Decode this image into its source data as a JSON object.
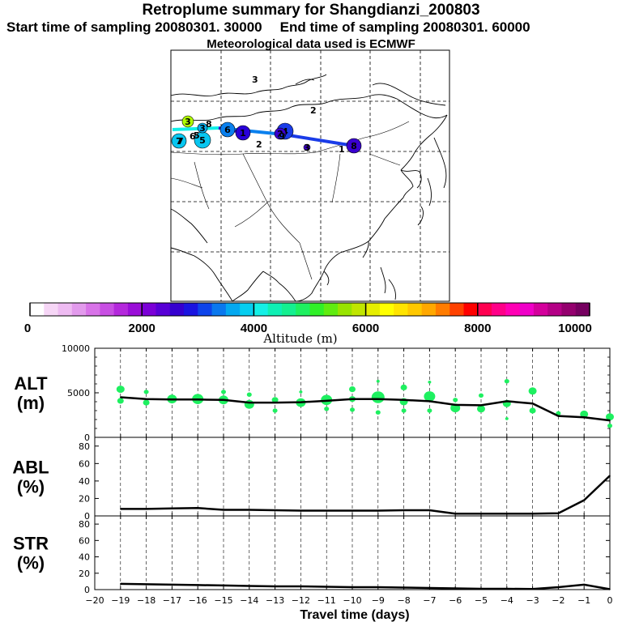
{
  "header": {
    "title": "Retroplume summary for Shangdianzi_200803",
    "start_label": "Start time of sampling 20080301. 30000",
    "end_label": "End time of sampling 20080301. 60000",
    "met_label": "Meteorological data used is ECMWF"
  },
  "colorbar": {
    "label": "Altitude (m)",
    "ticks": [
      "0",
      "2000",
      "4000",
      "6000",
      "8000",
      "10000"
    ],
    "colors": [
      "#ffffff",
      "#f6d6f6",
      "#eebbf2",
      "#e29aec",
      "#d873e8",
      "#c84fe3",
      "#b428dc",
      "#9a0ed8",
      "#7b00d7",
      "#5800d6",
      "#3500cf",
      "#1a14e0",
      "#0e44ea",
      "#0a78ee",
      "#04a8f0",
      "#06cef0",
      "#14f0e6",
      "#0ff0b4",
      "#14f090",
      "#1ef060",
      "#30f028",
      "#60ec10",
      "#98e400",
      "#c0e600",
      "#e6ee00",
      "#ffff00",
      "#ffe400",
      "#ffc800",
      "#ffa800",
      "#ff7c00",
      "#ff4200",
      "#ff0000",
      "#ff0050",
      "#ff0088",
      "#ff00b4",
      "#f000c8",
      "#d4009c",
      "#b40086",
      "#94006e",
      "#760060"
    ]
  },
  "map": {
    "markers": [
      {
        "label": "3",
        "color": "#b0ff00"
      },
      {
        "label": "7",
        "color": "#08c6f0"
      },
      {
        "label": "5",
        "color": "#08c6f0"
      },
      {
        "label": "3",
        "color": "#08b0f0"
      },
      {
        "label": "6",
        "color": "#0a80ee"
      },
      {
        "label": "1",
        "color": "#2800d8"
      },
      {
        "label": "4",
        "color": "#1a3ce8"
      },
      {
        "label": "2",
        "color": "#3a00d0"
      },
      {
        "label": "8",
        "color": "#3a00d0"
      },
      {
        "label": "3",
        "color": "#4000d0"
      },
      {
        "label": "9",
        "color": "#1a30e6"
      }
    ],
    "path_labels": [
      "3",
      "2",
      "2",
      "1",
      "6",
      "5",
      "7",
      "8"
    ]
  },
  "chart_data": [
    {
      "type": "line",
      "panel": "ALT",
      "title": "ALT (m)",
      "ylabel": "ALT\n(m)",
      "ylim": [
        0,
        10000
      ],
      "yticks": [
        "10000",
        "5000",
        "0"
      ],
      "x": [
        -19,
        -18,
        -17,
        -16,
        -15,
        -14,
        -13,
        -12,
        -11,
        -10,
        -9,
        -8,
        -7,
        -6,
        -5,
        -4,
        -3,
        -2,
        -1,
        0
      ],
      "values": [
        4500,
        4300,
        4250,
        4250,
        4200,
        3900,
        3900,
        3950,
        4100,
        4300,
        4300,
        4200,
        4050,
        3650,
        3600,
        4050,
        3800,
        2400,
        2250,
        1900
      ],
      "scatter_points": [
        {
          "x": -19,
          "y": 5400,
          "size": 5
        },
        {
          "x": -19,
          "y": 4100,
          "size": 4
        },
        {
          "x": -18,
          "y": 5100,
          "size": 3
        },
        {
          "x": -18,
          "y": 3900,
          "size": 4
        },
        {
          "x": -17,
          "y": 4300,
          "size": 6
        },
        {
          "x": -16,
          "y": 4300,
          "size": 7
        },
        {
          "x": -15,
          "y": 4200,
          "size": 6
        },
        {
          "x": -15,
          "y": 5100,
          "size": 3
        },
        {
          "x": -14,
          "y": 3700,
          "size": 6
        },
        {
          "x": -14,
          "y": 4800,
          "size": 3
        },
        {
          "x": -13,
          "y": 4200,
          "size": 4
        },
        {
          "x": -13,
          "y": 3000,
          "size": 3
        },
        {
          "x": -12,
          "y": 3900,
          "size": 6
        },
        {
          "x": -12,
          "y": 5100,
          "size": 2
        },
        {
          "x": -11,
          "y": 4200,
          "size": 7
        },
        {
          "x": -11,
          "y": 3200,
          "size": 3
        },
        {
          "x": -10,
          "y": 5400,
          "size": 4
        },
        {
          "x": -10,
          "y": 4300,
          "size": 4
        },
        {
          "x": -10,
          "y": 3100,
          "size": 3
        },
        {
          "x": -9,
          "y": 4500,
          "size": 8
        },
        {
          "x": -9,
          "y": 6300,
          "size": 2
        },
        {
          "x": -9,
          "y": 2800,
          "size": 3
        },
        {
          "x": -8,
          "y": 5600,
          "size": 4
        },
        {
          "x": -8,
          "y": 4000,
          "size": 5
        },
        {
          "x": -8,
          "y": 3000,
          "size": 3
        },
        {
          "x": -7,
          "y": 4600,
          "size": 7
        },
        {
          "x": -7,
          "y": 6200,
          "size": 2
        },
        {
          "x": -7,
          "y": 3000,
          "size": 3
        },
        {
          "x": -6,
          "y": 3300,
          "size": 6
        },
        {
          "x": -6,
          "y": 4200,
          "size": 3
        },
        {
          "x": -5,
          "y": 3200,
          "size": 5
        },
        {
          "x": -5,
          "y": 4700,
          "size": 3
        },
        {
          "x": -4,
          "y": 3800,
          "size": 5
        },
        {
          "x": -4,
          "y": 6300,
          "size": 3
        },
        {
          "x": -4,
          "y": 2100,
          "size": 2
        },
        {
          "x": -3,
          "y": 5200,
          "size": 5
        },
        {
          "x": -3,
          "y": 3000,
          "size": 4
        },
        {
          "x": -2,
          "y": 2700,
          "size": 3
        },
        {
          "x": -1,
          "y": 2600,
          "size": 5
        },
        {
          "x": 0,
          "y": 2300,
          "size": 5
        },
        {
          "x": 0,
          "y": 1300,
          "size": 3
        }
      ]
    },
    {
      "type": "line",
      "panel": "ABL",
      "title": "ABL (%)",
      "ylabel": "ABL\n(%)",
      "ylim": [
        0,
        90
      ],
      "yticks": [
        "80",
        "60",
        "40",
        "20",
        "0"
      ],
      "x": [
        -19,
        -18,
        -17,
        -16,
        -15,
        -14,
        -13,
        -12,
        -11,
        -10,
        -9,
        -8,
        -7,
        -6,
        -5,
        -4,
        -3,
        -2,
        -1,
        0
      ],
      "values": [
        8,
        8,
        8.5,
        9,
        7,
        7,
        6.5,
        6,
        6,
        6,
        6,
        6.5,
        6.5,
        2.5,
        2.5,
        2.5,
        2.5,
        3,
        18,
        46
      ]
    },
    {
      "type": "line",
      "panel": "STR",
      "title": "STR (%)",
      "ylabel": "STR\n(%)",
      "ylim": [
        0,
        90
      ],
      "yticks": [
        "80",
        "60",
        "40",
        "20",
        "0"
      ],
      "x": [
        -19,
        -18,
        -17,
        -16,
        -15,
        -14,
        -13,
        -12,
        -11,
        -10,
        -9,
        -8,
        -7,
        -6,
        -5,
        -4,
        -3,
        -2,
        -1,
        0
      ],
      "values": [
        7,
        6.5,
        6,
        5.5,
        5,
        4.5,
        4,
        4,
        3.5,
        3,
        3,
        2.5,
        2,
        1.5,
        1,
        1,
        0.8,
        3,
        6,
        0.5
      ]
    }
  ],
  "xaxis": {
    "xlabel": "Travel time (days)",
    "xlim": [
      -20,
      0
    ],
    "ticks": [
      "−20",
      "−19",
      "−18",
      "−17",
      "−16",
      "−15",
      "−14",
      "−13",
      "−12",
      "−11",
      "−10",
      "−9",
      "−8",
      "−7",
      "−6",
      "−5",
      "−4",
      "−3",
      "−2",
      "−1",
      "0"
    ]
  },
  "colors": {
    "scatter": "#1ef060",
    "line": "#000000"
  }
}
